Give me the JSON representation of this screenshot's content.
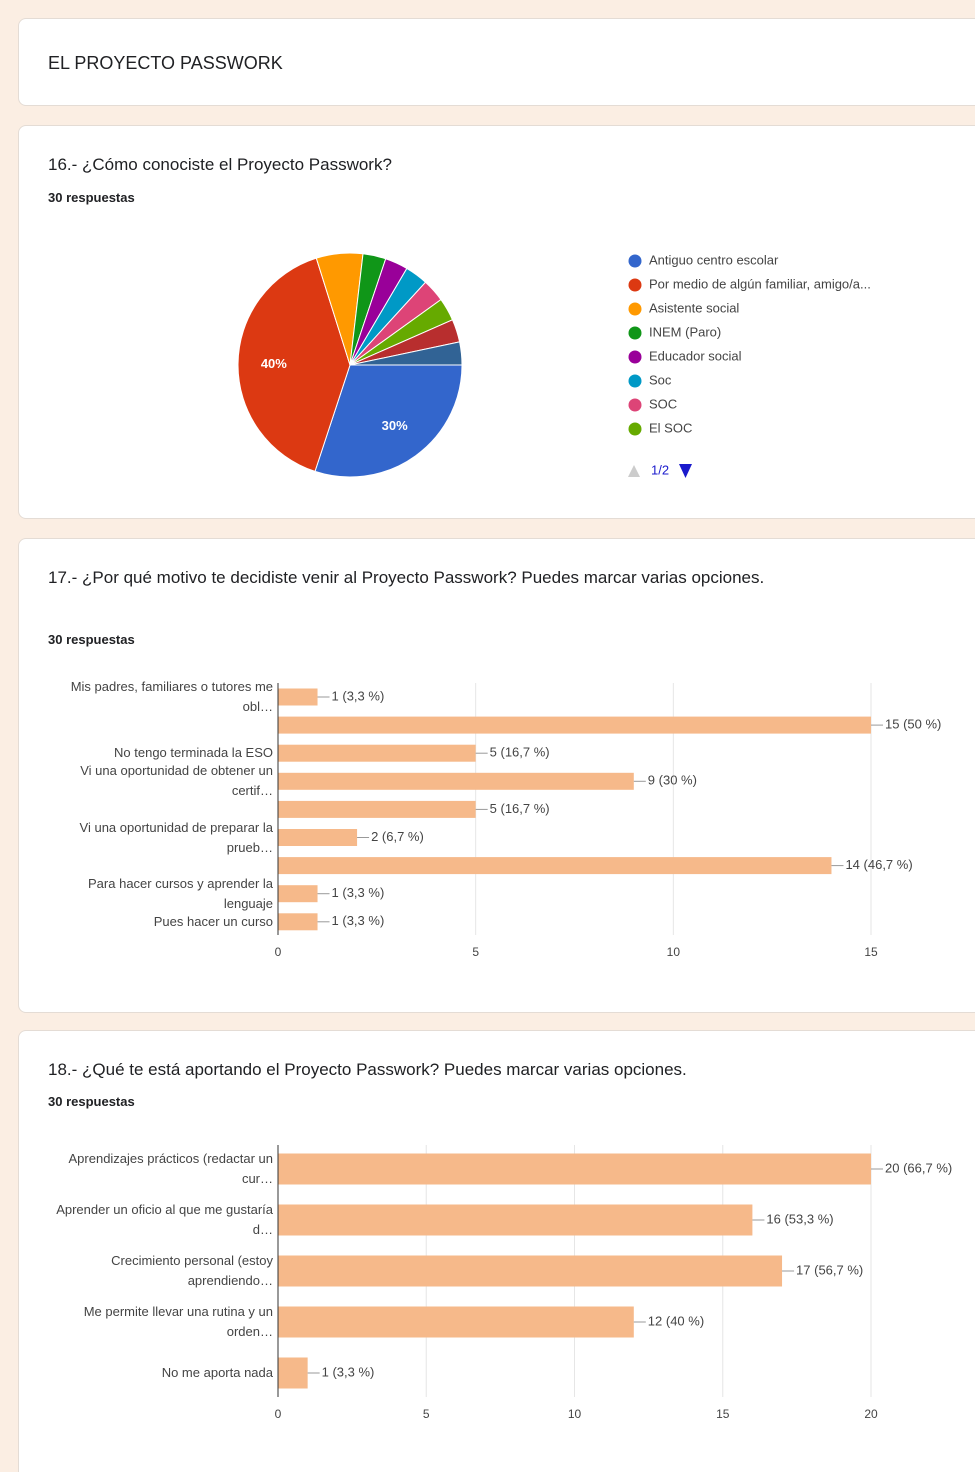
{
  "header": {
    "title": "EL PROYECTO PASSWORK"
  },
  "chart_data": [
    {
      "type": "pie",
      "title": "16.- ¿Cómo conociste el Proyecto Passwork?",
      "subtitle": "30 respuestas",
      "categories": [
        "Antiguo centro escolar",
        "Por medio de algún familiar, amigo/a...",
        "Asistente social",
        "INEM (Paro)",
        "Educador social",
        "Soc",
        "SOC",
        "El SOC",
        null,
        null
      ],
      "values": [
        30,
        40,
        6.7,
        3.3,
        3.3,
        3.3,
        3.3,
        3.3,
        3.3,
        3.3
      ],
      "value_labels": [
        "30%",
        "40%",
        null,
        null,
        null,
        null,
        null,
        null,
        null,
        null
      ],
      "colors": [
        "#3366cc",
        "#dc3912",
        "#ff9900",
        "#109618",
        "#990099",
        "#0099c6",
        "#dd4477",
        "#66aa00",
        "#b82e2e",
        "#316395"
      ],
      "legend_page": "1/2"
    },
    {
      "type": "hbar",
      "title": "17.- ¿Por qué motivo te decidiste venir al Proyecto Passwork? Puedes marcar varias opciones.",
      "subtitle": "30 respuestas",
      "categories": [
        "Mis padres, familiares o tutores me obl…",
        null,
        "No tengo terminada la ESO",
        "Vi una oportunidad de obtener un certif…",
        null,
        "Vi una oportunidad de preparar la prueb…",
        null,
        "Para hacer cursos y aprender la lenguaje",
        "Pues hacer un curso"
      ],
      "values": [
        1,
        15,
        5,
        9,
        5,
        2,
        14,
        1,
        1
      ],
      "value_labels": [
        "1 (3,3 %)",
        "15 (50 %)",
        "5 (16,7 %)",
        "9 (30 %)",
        "5 (16,7 %)",
        "2 (6,7 %)",
        "14 (46,7 %)",
        "1 (3,3 %)",
        "1 (3,3 %)"
      ],
      "color": "#f6b98a",
      "xlim": [
        0,
        15
      ],
      "xticks": [
        0,
        5,
        10,
        15
      ],
      "grid": true
    },
    {
      "type": "hbar",
      "title": "18.- ¿Qué te está aportando el Proyecto Passwork? Puedes marcar varias opciones.",
      "subtitle": "30 respuestas",
      "categories": [
        "Aprendizajes prácticos (redactar un cur…",
        "Aprender un oficio al que me gustaría d…",
        "Crecimiento personal (estoy aprendiendo…",
        "Me permite llevar una rutina y un orden…",
        "No me aporta nada"
      ],
      "values": [
        20,
        16,
        17,
        12,
        1
      ],
      "value_labels": [
        "20 (66,7 %)",
        "16 (53,3 %)",
        "17 (56,7 %)",
        "12 (40 %)",
        "1 (3,3 %)"
      ],
      "color": "#f6b98a",
      "xlim": [
        0,
        20
      ],
      "xticks": [
        0,
        5,
        10,
        15,
        20
      ],
      "grid": true
    }
  ]
}
